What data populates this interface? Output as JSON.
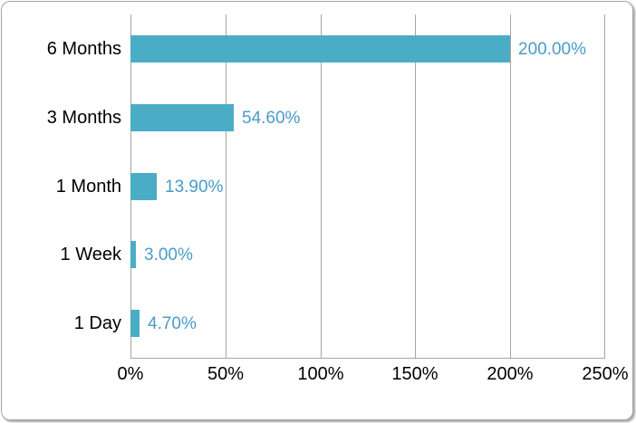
{
  "window": {
    "background_color": "#FFFFFF",
    "card_border_color": "#A6A6A6"
  },
  "chart_data": {
    "type": "bar",
    "orientation": "horizontal",
    "title": "",
    "xlabel": "",
    "ylabel": "",
    "categories": [
      "6 Months",
      "3 Months",
      "1 Month",
      "1 Week",
      "1 Day"
    ],
    "values": [
      200.0,
      54.6,
      13.9,
      3.0,
      4.7
    ],
    "data_labels": [
      "200.00%",
      "54.60%",
      "13.90%",
      "3.00%",
      "4.70%"
    ],
    "x_ticks": [
      0,
      50,
      100,
      150,
      200,
      250
    ],
    "x_tick_labels": [
      "0%",
      "50%",
      "100%",
      "150%",
      "200%",
      "250%"
    ],
    "xlim": [
      0,
      250
    ],
    "grid": "vertical",
    "legend_position": "none",
    "colors": {
      "bar": "#4BACC6",
      "data_label": "#4A9BC8",
      "category_label": "#000000",
      "tick_label": "#000000",
      "gridline": "#A6A6A6",
      "axis_line": "#A6A6A6"
    }
  }
}
